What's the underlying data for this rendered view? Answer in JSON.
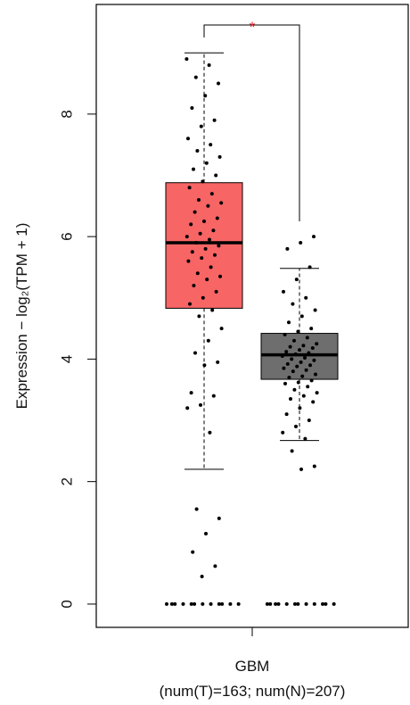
{
  "chart_data": {
    "type": "box",
    "y_label": "Expression − log₂(TPM + 1)",
    "categories": [
      "GBM"
    ],
    "x_sublabel": "(num(T)=163; num(N)=207)",
    "annotation": "*",
    "annotation_color": "#e8202a",
    "ylim": [
      -0.38,
      9.79
    ],
    "yticks": [
      0,
      2,
      4,
      6,
      8
    ],
    "series": [
      {
        "color": "#f76565",
        "whisker_low": 2.2,
        "q1": 4.83,
        "median": 5.9,
        "q3": 6.88,
        "whisker_high": 9.0,
        "points": [
          0,
          0,
          0,
          0,
          0,
          0,
          0,
          0,
          0,
          0,
          0,
          0,
          0.45,
          0.62,
          0.85,
          1.15,
          1.4,
          1.55,
          2.8,
          3.2,
          3.25,
          3.4,
          3.45,
          3.9,
          3.95,
          4.1,
          4.3,
          4.5,
          4.7,
          4.8,
          4.9,
          5.0,
          5.1,
          5.2,
          5.3,
          5.35,
          5.4,
          5.5,
          5.6,
          5.65,
          5.7,
          5.75,
          5.8,
          5.85,
          5.9,
          5.95,
          6.0,
          6.05,
          6.1,
          6.2,
          6.25,
          6.3,
          6.4,
          6.5,
          6.55,
          6.6,
          6.7,
          6.8,
          6.9,
          7.0,
          7.1,
          7.2,
          7.3,
          7.4,
          7.5,
          7.6,
          7.8,
          7.9,
          8.1,
          8.3,
          8.5,
          8.6,
          8.8,
          8.9
        ]
      },
      {
        "color": "#6e6e6e",
        "whisker_low": 2.67,
        "q1": 3.67,
        "median": 4.07,
        "q3": 4.42,
        "whisker_high": 5.48,
        "points": [
          0,
          0,
          0,
          0,
          0,
          0,
          0,
          0,
          0,
          0,
          0,
          0,
          2.2,
          2.25,
          2.5,
          2.7,
          2.8,
          2.9,
          3.0,
          3.1,
          3.2,
          3.3,
          3.35,
          3.4,
          3.45,
          3.5,
          3.55,
          3.6,
          3.62,
          3.65,
          3.7,
          3.72,
          3.75,
          3.8,
          3.82,
          3.85,
          3.88,
          3.9,
          3.92,
          3.95,
          3.98,
          4.0,
          4.02,
          4.05,
          4.08,
          4.1,
          4.12,
          4.15,
          4.18,
          4.2,
          4.22,
          4.25,
          4.3,
          4.35,
          4.4,
          4.45,
          4.5,
          4.6,
          4.7,
          4.8,
          4.9,
          5.0,
          5.1,
          5.3,
          5.5,
          5.8,
          5.9,
          6.0
        ]
      }
    ]
  }
}
